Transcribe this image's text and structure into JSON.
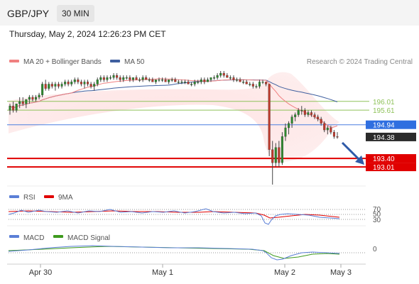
{
  "header": {
    "symbol": "GBP/JPY",
    "timeframe": "30 MIN"
  },
  "datetime": "Thursday, May 2, 2024 12:26:23 PM CET",
  "legend": {
    "ma20": "MA 20 + Bollinger Bands",
    "ma50": "MA 50",
    "rsi": "RSI",
    "rsi_ma": "9MA",
    "macd": "MACD",
    "macd_signal": "MACD Signal"
  },
  "copyright": "Research © 2024 Trading Central",
  "colors": {
    "bullish": "#2d8a2d",
    "bearish": "#c0392b",
    "ma20": "#f08080",
    "ma50": "#3f5f9f",
    "pivot_blue": "#4a7fe0",
    "resistance": "#8fc25a",
    "support": "#e00000",
    "rsi": "#5b7fd6",
    "rsi_ma": "#e00000",
    "macd": "#5b7fd6",
    "macd_signal": "#3e9a1e"
  },
  "chart_data": [
    {
      "type": "candlestick",
      "name": "price",
      "ylim": [
        192.2,
        197.4
      ],
      "x_ticks": [
        "Apr 30",
        "May 1",
        "May 2",
        "May 3"
      ],
      "levels": [
        {
          "label": "196.01",
          "value": 196.01,
          "kind": "resistance"
        },
        {
          "label": "195.61",
          "value": 195.61,
          "kind": "resistance"
        },
        {
          "label": "194.94",
          "value": 194.94,
          "kind": "pivot"
        },
        {
          "label": "194.38",
          "value": 194.38,
          "kind": "last"
        },
        {
          "label": "193.40",
          "value": 193.4,
          "kind": "support"
        },
        {
          "label": "193.01",
          "value": 193.01,
          "kind": "support"
        }
      ],
      "ohlc": [
        [
          195.6,
          195.9,
          195.4,
          195.8
        ],
        [
          195.8,
          196.0,
          195.5,
          195.6
        ],
        [
          195.6,
          195.9,
          195.5,
          195.9
        ],
        [
          195.9,
          196.2,
          195.7,
          196.0
        ],
        [
          196.0,
          196.2,
          195.8,
          195.9
        ],
        [
          195.9,
          196.1,
          195.7,
          196.1
        ],
        [
          196.1,
          196.3,
          195.9,
          196.2
        ],
        [
          196.2,
          196.3,
          196.0,
          196.1
        ],
        [
          196.1,
          196.3,
          196.0,
          196.2
        ],
        [
          196.2,
          196.4,
          196.1,
          196.3
        ],
        [
          196.3,
          196.9,
          196.2,
          196.8
        ],
        [
          196.8,
          197.0,
          196.5,
          196.6
        ],
        [
          196.6,
          196.9,
          196.5,
          196.8
        ],
        [
          196.8,
          196.9,
          196.6,
          196.7
        ],
        [
          196.7,
          196.9,
          196.5,
          196.8
        ],
        [
          196.8,
          196.9,
          196.6,
          196.7
        ],
        [
          196.7,
          196.9,
          196.6,
          196.8
        ],
        [
          196.8,
          197.0,
          196.7,
          196.9
        ],
        [
          196.9,
          197.0,
          196.7,
          196.8
        ],
        [
          196.8,
          197.0,
          196.7,
          196.9
        ],
        [
          196.9,
          197.1,
          196.8,
          197.0
        ],
        [
          197.0,
          197.1,
          196.8,
          196.9
        ],
        [
          196.9,
          197.0,
          196.7,
          196.8
        ],
        [
          196.8,
          197.0,
          196.6,
          196.9
        ],
        [
          196.9,
          197.0,
          196.7,
          196.8
        ],
        [
          196.8,
          196.9,
          196.6,
          196.7
        ],
        [
          196.7,
          196.9,
          196.5,
          196.8
        ],
        [
          196.8,
          197.1,
          196.7,
          197.0
        ],
        [
          197.0,
          197.2,
          196.9,
          197.1
        ],
        [
          197.1,
          197.2,
          196.9,
          197.0
        ],
        [
          197.0,
          197.2,
          196.9,
          197.1
        ],
        [
          197.1,
          197.2,
          197.0,
          197.1
        ],
        [
          197.1,
          197.3,
          197.0,
          197.2
        ],
        [
          197.2,
          197.3,
          197.0,
          197.1
        ],
        [
          197.1,
          197.2,
          196.9,
          197.0
        ],
        [
          197.0,
          197.2,
          196.9,
          197.1
        ],
        [
          197.1,
          197.2,
          197.0,
          197.1
        ],
        [
          197.1,
          197.2,
          196.9,
          197.0
        ],
        [
          197.0,
          197.1,
          196.9,
          197.1
        ],
        [
          197.1,
          197.2,
          197.0,
          197.0
        ],
        [
          197.0,
          197.1,
          196.9,
          197.0
        ],
        [
          197.0,
          197.2,
          196.9,
          197.1
        ],
        [
          197.1,
          197.2,
          197.0,
          197.0
        ],
        [
          197.0,
          197.1,
          196.9,
          197.0
        ],
        [
          197.0,
          197.1,
          196.9,
          196.9
        ],
        [
          196.9,
          197.0,
          196.8,
          197.0
        ],
        [
          197.0,
          197.1,
          196.9,
          197.0
        ],
        [
          197.0,
          197.1,
          196.9,
          197.0
        ],
        [
          197.0,
          197.1,
          196.9,
          196.9
        ],
        [
          196.9,
          197.0,
          196.8,
          197.0
        ],
        [
          197.0,
          197.1,
          196.9,
          197.0
        ],
        [
          197.0,
          197.1,
          196.9,
          196.9
        ],
        [
          196.9,
          197.0,
          196.8,
          196.9
        ],
        [
          196.9,
          197.0,
          196.8,
          196.9
        ],
        [
          196.9,
          197.0,
          196.8,
          196.9
        ],
        [
          196.9,
          197.0,
          196.8,
          196.8
        ],
        [
          196.8,
          196.9,
          196.7,
          196.8
        ],
        [
          196.8,
          197.0,
          196.7,
          196.9
        ],
        [
          196.9,
          197.0,
          196.8,
          196.9
        ],
        [
          196.9,
          197.1,
          196.8,
          197.0
        ],
        [
          197.0,
          197.1,
          196.8,
          196.9
        ],
        [
          196.9,
          197.1,
          196.9,
          197.0
        ],
        [
          197.0,
          197.1,
          196.9,
          197.1
        ],
        [
          197.1,
          197.2,
          197.0,
          197.1
        ],
        [
          197.1,
          197.3,
          197.0,
          197.2
        ],
        [
          197.2,
          197.4,
          197.1,
          197.3
        ],
        [
          197.3,
          197.4,
          197.1,
          197.2
        ],
        [
          197.2,
          197.3,
          197.1,
          197.1
        ],
        [
          197.1,
          197.2,
          197.0,
          197.1
        ],
        [
          197.1,
          197.2,
          196.9,
          197.0
        ],
        [
          197.0,
          197.1,
          196.9,
          197.0
        ],
        [
          197.0,
          197.1,
          196.9,
          196.9
        ],
        [
          196.9,
          197.0,
          196.8,
          196.9
        ],
        [
          196.9,
          197.0,
          196.8,
          196.8
        ],
        [
          196.8,
          196.9,
          196.7,
          196.8
        ],
        [
          196.8,
          196.9,
          196.6,
          196.7
        ],
        [
          196.7,
          196.8,
          196.6,
          196.7
        ],
        [
          196.7,
          197.0,
          196.6,
          196.9
        ],
        [
          196.9,
          197.0,
          196.8,
          196.9
        ],
        [
          196.9,
          196.9,
          196.7,
          196.8
        ],
        [
          196.8,
          196.8,
          193.5,
          193.8
        ],
        [
          193.8,
          194.2,
          192.2,
          193.2
        ],
        [
          193.2,
          194.1,
          193.0,
          193.9
        ],
        [
          193.9,
          194.2,
          193.0,
          193.2
        ],
        [
          193.2,
          194.6,
          193.1,
          194.4
        ],
        [
          194.4,
          195.0,
          194.2,
          194.8
        ],
        [
          194.8,
          195.1,
          194.5,
          195.0
        ],
        [
          195.0,
          195.4,
          194.8,
          195.3
        ],
        [
          195.3,
          195.5,
          195.1,
          195.4
        ],
        [
          195.4,
          195.7,
          195.3,
          195.6
        ],
        [
          195.6,
          195.8,
          195.4,
          195.6
        ],
        [
          195.6,
          195.7,
          195.3,
          195.4
        ],
        [
          195.4,
          195.6,
          195.3,
          195.5
        ],
        [
          195.5,
          195.6,
          195.3,
          195.4
        ],
        [
          195.4,
          195.5,
          195.2,
          195.3
        ],
        [
          195.3,
          195.4,
          195.1,
          195.2
        ],
        [
          195.2,
          195.3,
          194.9,
          195.0
        ],
        [
          195.0,
          195.1,
          194.6,
          194.7
        ],
        [
          194.7,
          194.9,
          194.5,
          194.8
        ],
        [
          194.8,
          194.9,
          194.5,
          194.6
        ],
        [
          194.6,
          194.7,
          194.3,
          194.4
        ],
        [
          194.4,
          194.6,
          194.3,
          194.38
        ]
      ]
    },
    {
      "type": "line",
      "name": "rsi",
      "ylim": [
        20,
        80
      ],
      "y_ticks": [
        "70",
        "50",
        "30"
      ]
    },
    {
      "type": "line",
      "name": "macd",
      "y_ticks": [
        "0"
      ]
    }
  ]
}
